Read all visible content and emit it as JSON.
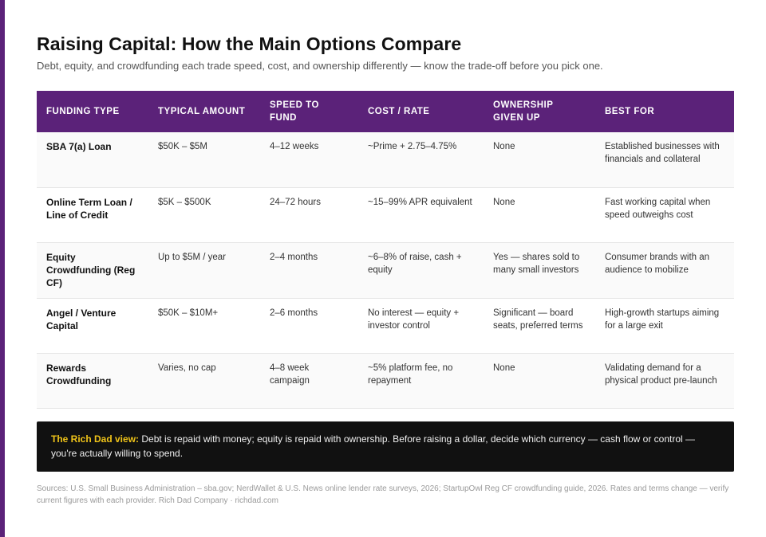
{
  "header": {
    "title": "Raising Capital: How the Main Options Compare",
    "subtitle": "Debt, equity, and crowdfunding each trade speed, cost, and ownership differently — know the trade-off before you pick one."
  },
  "table": {
    "columns": [
      "Funding Type",
      "Typical Amount",
      "Speed to Fund",
      "Cost / Rate",
      "Ownership Given Up",
      "Best For"
    ],
    "rows": [
      [
        "SBA 7(a) Loan",
        "$50K – $5M",
        "4–12 weeks",
        "~Prime + 2.75–4.75%",
        "None",
        "Established businesses with financials and collateral"
      ],
      [
        "Online Term Loan / Line of Credit",
        "$5K – $500K",
        "24–72 hours",
        "~15–99% APR equivalent",
        "None",
        "Fast working capital when speed outweighs cost"
      ],
      [
        "Equity Crowdfunding (Reg CF)",
        "Up to $5M / year",
        "2–4 months",
        "~6–8% of raise, cash + equity",
        "Yes — shares sold to many small investors",
        "Consumer brands with an audience to mobilize"
      ],
      [
        "Angel / Venture Capital",
        "$50K – $10M+",
        "2–6 months",
        "No interest — equity + investor control",
        "Significant — board seats, preferred terms",
        "High-growth startups aiming for a large exit"
      ],
      [
        "Rewards Crowdfunding",
        "Varies, no cap",
        "4–8 week campaign",
        "~5% platform fee, no repayment",
        "None",
        "Validating demand for a physical product pre-launch"
      ]
    ]
  },
  "callout": {
    "lead": "The Rich Dad view:",
    "text": " Debt is repaid with money; equity is repaid with ownership. Before raising a dollar, decide which currency — cash flow or control — you're actually willing to spend."
  },
  "sources": "Sources: U.S. Small Business Administration – sba.gov; NerdWallet & U.S. News online lender rate surveys, 2026; StartupOwl Reg CF crowdfunding guide, 2026. Rates and terms change — verify current figures with each provider. Rich Dad Company · richdad.com",
  "colors": {
    "accent": "#5b2279",
    "callout_bg": "#111111",
    "callout_lead": "#f0c419"
  }
}
